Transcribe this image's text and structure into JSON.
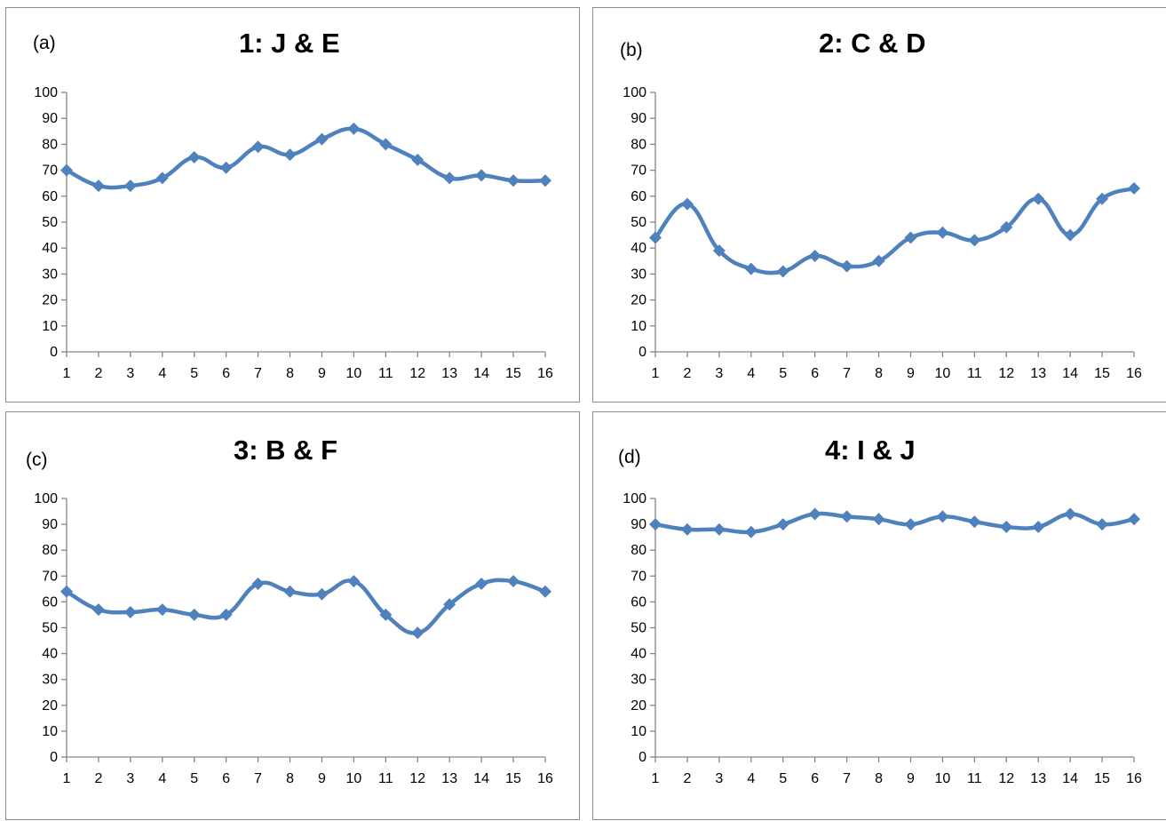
{
  "colors": {
    "series": "#4f81bd",
    "axis": "#868686",
    "border": "#8c8c8c"
  },
  "chart_data": [
    {
      "type": "line",
      "panel_tag": "(a)",
      "title": "1: J & E",
      "x": [
        1,
        2,
        3,
        4,
        5,
        6,
        7,
        8,
        9,
        10,
        11,
        12,
        13,
        14,
        15,
        16
      ],
      "series": [
        {
          "values": [
            70,
            64,
            64,
            67,
            75,
            71,
            79,
            76,
            82,
            86,
            80,
            74,
            67,
            68,
            66,
            66
          ]
        }
      ],
      "ylim": [
        0,
        100
      ],
      "yticks": [
        0,
        10,
        20,
        30,
        40,
        50,
        60,
        70,
        80,
        90,
        100
      ],
      "marker": "diamond",
      "grid": false,
      "legend": "none"
    },
    {
      "type": "line",
      "panel_tag": "(b)",
      "title": "2: C & D",
      "x": [
        1,
        2,
        3,
        4,
        5,
        6,
        7,
        8,
        9,
        10,
        11,
        12,
        13,
        14,
        15,
        16
      ],
      "series": [
        {
          "values": [
            44,
            57,
            39,
            32,
            31,
            37,
            33,
            35,
            44,
            46,
            43,
            48,
            59,
            45,
            59,
            63
          ]
        }
      ],
      "ylim": [
        0,
        100
      ],
      "yticks": [
        0,
        10,
        20,
        30,
        40,
        50,
        60,
        70,
        80,
        90,
        100
      ],
      "marker": "diamond",
      "grid": false,
      "legend": "none"
    },
    {
      "type": "line",
      "panel_tag": "(c)",
      "title": "3: B & F",
      "x": [
        1,
        2,
        3,
        4,
        5,
        6,
        7,
        8,
        9,
        10,
        11,
        12,
        13,
        14,
        15,
        16
      ],
      "series": [
        {
          "values": [
            64,
            57,
            56,
            57,
            55,
            55,
            67,
            64,
            63,
            68,
            55,
            48,
            59,
            67,
            68,
            64
          ]
        }
      ],
      "ylim": [
        0,
        100
      ],
      "yticks": [
        0,
        10,
        20,
        30,
        40,
        50,
        60,
        70,
        80,
        90,
        100
      ],
      "marker": "diamond",
      "grid": false,
      "legend": "none"
    },
    {
      "type": "line",
      "panel_tag": "(d)",
      "title": "4: I & J",
      "x": [
        1,
        2,
        3,
        4,
        5,
        6,
        7,
        8,
        9,
        10,
        11,
        12,
        13,
        14,
        15,
        16
      ],
      "series": [
        {
          "values": [
            90,
            88,
            88,
            87,
            90,
            94,
            93,
            92,
            90,
            93,
            91,
            89,
            89,
            94,
            90,
            92
          ]
        }
      ],
      "ylim": [
        0,
        100
      ],
      "yticks": [
        0,
        10,
        20,
        30,
        40,
        50,
        60,
        70,
        80,
        90,
        100
      ],
      "marker": "diamond",
      "grid": false,
      "legend": "none"
    }
  ]
}
